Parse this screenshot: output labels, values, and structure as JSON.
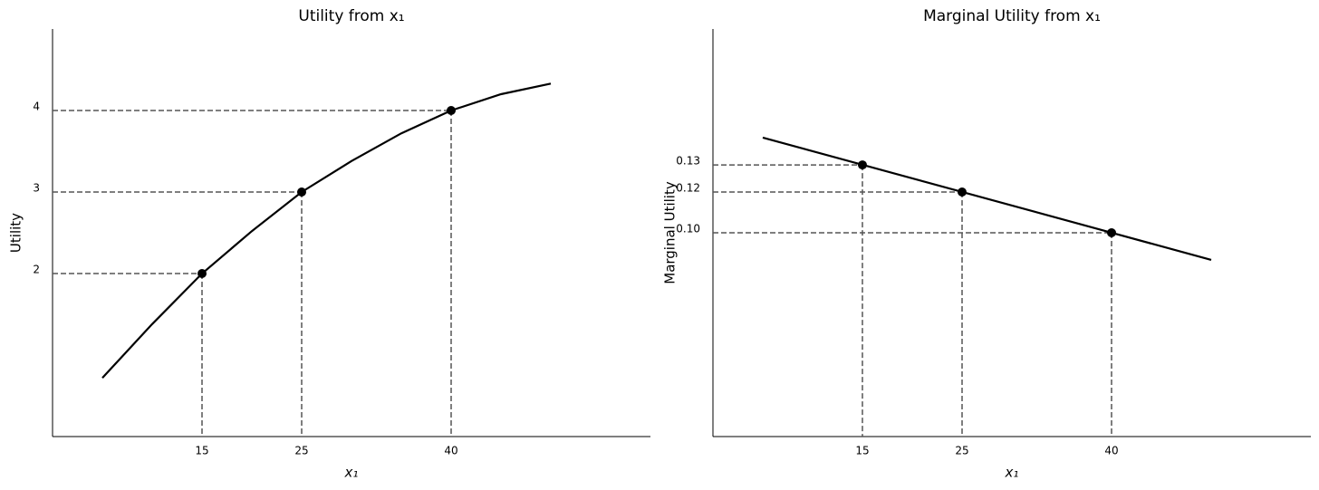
{
  "chart_data": [
    {
      "type": "line",
      "title": "Utility from x₁",
      "xlabel": "x₁",
      "ylabel": "Utility",
      "xlim": [
        0,
        60
      ],
      "ylim": [
        0,
        5
      ],
      "xticks": [
        15,
        25,
        40
      ],
      "yticks": [
        2,
        3,
        4
      ],
      "x": [
        5,
        10,
        15,
        20,
        25,
        30,
        35,
        40,
        45,
        50
      ],
      "values": [
        0.72,
        1.38,
        2,
        2.52,
        3,
        3.38,
        3.72,
        4,
        4.2,
        4.33
      ],
      "points": {
        "x": [
          15,
          25,
          40
        ],
        "values": [
          2,
          3,
          4
        ]
      },
      "color": "#000000",
      "guide_color": "#555555"
    },
    {
      "type": "line",
      "title": "Marginal Utility from x₁",
      "xlabel": "x₁",
      "ylabel": "Marginal Utility",
      "xlim": [
        0,
        60
      ],
      "ylim": [
        0,
        0.2
      ],
      "xticks": [
        15,
        25,
        40
      ],
      "yticks": [
        {
          "value": 0.1333,
          "label": "0.13"
        },
        {
          "value": 0.12,
          "label": "0.12"
        },
        {
          "value": 0.1,
          "label": "0.10"
        }
      ],
      "x": [
        5,
        50
      ],
      "values": [
        0.1467,
        0.0867
      ],
      "points": {
        "x": [
          15,
          25,
          40
        ],
        "values": [
          0.1333,
          0.12,
          0.1
        ]
      },
      "color": "#000000",
      "guide_color": "#555555"
    }
  ]
}
